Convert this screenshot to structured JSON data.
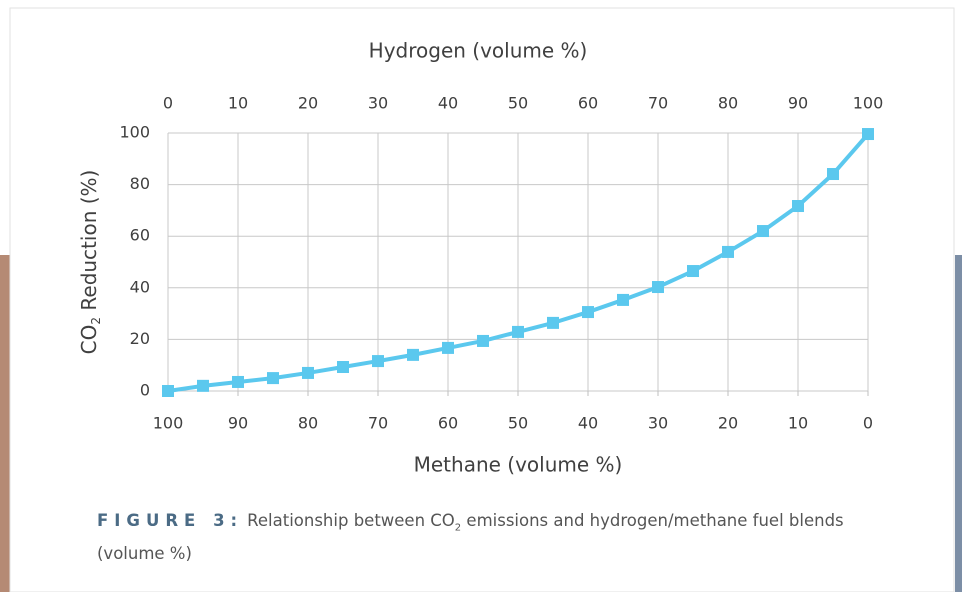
{
  "chart_data": {
    "type": "line",
    "x_label_top": "Hydrogen (volume %)",
    "x_label_bottom": "Methane (volume %)",
    "y_label": {
      "main": "CO",
      "sub": "2",
      "rest": " Reduction (%)"
    },
    "x": [
      0,
      5,
      10,
      15,
      20,
      25,
      30,
      35,
      40,
      45,
      50,
      55,
      60,
      65,
      70,
      75,
      80,
      85,
      90,
      95,
      100
    ],
    "series": [
      {
        "color": "#5bc8ee",
        "values": [
          0,
          2,
          3.5,
          5,
          7,
          9.3,
          11.6,
          14,
          16.7,
          19.4,
          22.9,
          26.4,
          30.6,
          35.3,
          40.3,
          46.5,
          53.9,
          62,
          71.7,
          84.1,
          99.6
        ]
      }
    ],
    "xlim": [
      0,
      100
    ],
    "xticks": [
      0,
      10,
      20,
      30,
      40,
      50,
      60,
      70,
      80,
      90,
      100
    ],
    "x2lim": [
      100,
      0
    ],
    "x2ticks": [
      100,
      90,
      80,
      70,
      60,
      50,
      40,
      30,
      20,
      10,
      0
    ],
    "ylim": [
      0,
      100
    ],
    "yticks": [
      0,
      20,
      40,
      60,
      80,
      100
    ],
    "grid": true
  },
  "caption": {
    "label": "FIGURE 3:",
    "text_1": "Relationship between CO",
    "sub": "2",
    "text_2": " emissions and hydrogen/methane fuel blends (volume %)"
  }
}
